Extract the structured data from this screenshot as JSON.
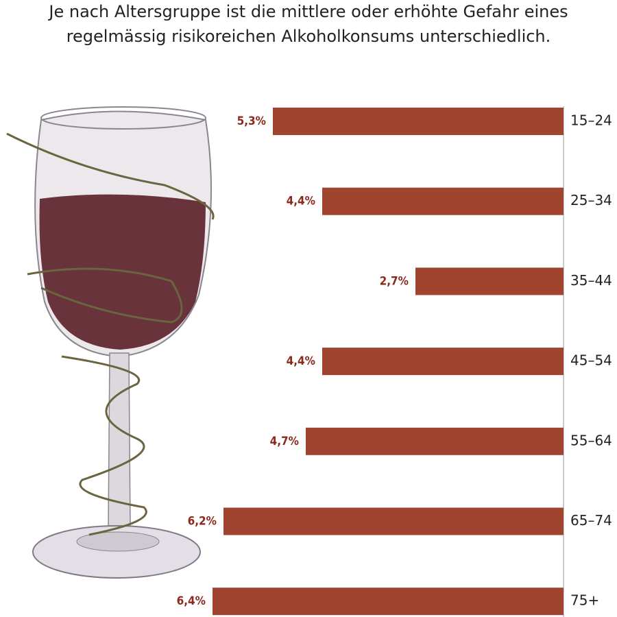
{
  "chart_data": {
    "type": "bar",
    "orientation": "horizontal",
    "title": [
      "Je nach Altersgruppe ist die mittlere oder erhöhte Gefahr eines",
      "regelmässig risikoreichen Alkoholkonsums unterschiedlich."
    ],
    "categories": [
      "15–24",
      "25–34",
      "35–44",
      "45–54",
      "55–64",
      "65–74",
      "75+"
    ],
    "values": [
      5.3,
      4.4,
      2.7,
      4.4,
      4.7,
      6.2,
      6.4
    ],
    "value_labels": [
      "5,3%",
      "4,4%",
      "2,7%",
      "4,4%",
      "4,7%",
      "6,2%",
      "6,4%"
    ],
    "color": "#a0432f"
  }
}
